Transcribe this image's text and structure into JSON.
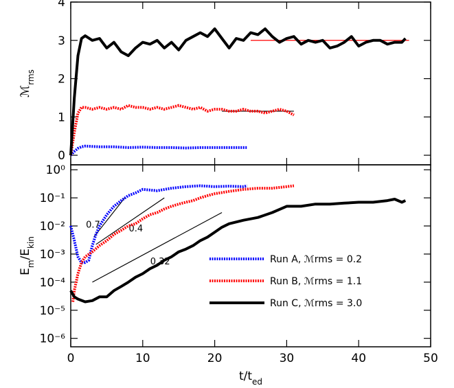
{
  "chart_data": [
    {
      "type": "line",
      "ylabel": [
        "ℳ",
        "rms"
      ],
      "xlim": [
        0,
        50
      ],
      "xticks": [
        0,
        10,
        20,
        30,
        40,
        50
      ],
      "ylim": [
        -0.25,
        4
      ],
      "yticks": [
        0,
        1,
        2,
        3,
        4
      ],
      "series": [
        {
          "color": "#0000ff",
          "style": "dotted",
          "x": [
            0,
            0.5,
            1,
            1.5,
            2,
            4,
            6,
            8,
            10,
            12,
            14,
            16,
            18,
            20,
            22,
            24,
            24.5
          ],
          "values": [
            0,
            0.1,
            0.18,
            0.22,
            0.24,
            0.22,
            0.22,
            0.2,
            0.21,
            0.2,
            0.2,
            0.19,
            0.2,
            0.2,
            0.2,
            0.2,
            0.2
          ]
        },
        {
          "color": "#ff0000",
          "style": "dotted",
          "x": [
            0,
            0.5,
            1,
            1.5,
            2,
            3,
            4,
            5,
            6,
            7,
            8,
            9,
            10,
            11,
            12,
            13,
            14,
            15,
            16,
            17,
            18,
            19,
            20,
            21,
            22,
            23,
            24,
            25,
            26,
            27,
            28,
            29,
            30,
            31
          ],
          "values": [
            0,
            0.6,
            1.1,
            1.25,
            1.25,
            1.2,
            1.25,
            1.2,
            1.25,
            1.2,
            1.3,
            1.25,
            1.25,
            1.2,
            1.25,
            1.2,
            1.25,
            1.3,
            1.25,
            1.2,
            1.25,
            1.15,
            1.2,
            1.2,
            1.15,
            1.15,
            1.2,
            1.15,
            1.15,
            1.1,
            1.15,
            1.2,
            1.15,
            1.05
          ]
        },
        {
          "color": "#000000",
          "style": "solid",
          "x": [
            0,
            0.5,
            1,
            1.5,
            2,
            3,
            4,
            5,
            6,
            7,
            8,
            9,
            10,
            11,
            12,
            13,
            14,
            15,
            16,
            17,
            18,
            19,
            20,
            21,
            22,
            23,
            24,
            25,
            26,
            27,
            28,
            29,
            30,
            31,
            32,
            33,
            34,
            35,
            36,
            37,
            38,
            39,
            40,
            41,
            42,
            43,
            44,
            45,
            46,
            46.5
          ],
          "values": [
            0,
            1.5,
            2.6,
            3.05,
            3.12,
            3.0,
            3.05,
            2.8,
            2.95,
            2.7,
            2.6,
            2.8,
            2.95,
            2.9,
            3.0,
            2.8,
            2.95,
            2.75,
            3.0,
            3.1,
            3.2,
            3.1,
            3.3,
            3.05,
            2.8,
            3.05,
            3.0,
            3.2,
            3.15,
            3.3,
            3.1,
            2.95,
            3.05,
            3.1,
            2.9,
            3.0,
            2.95,
            3.0,
            2.8,
            2.85,
            2.95,
            3.1,
            2.85,
            2.95,
            3.0,
            3.0,
            2.9,
            2.95,
            2.95,
            3.05
          ]
        }
      ],
      "reference_lines": [
        {
          "color": "#ff0000",
          "x": [
            25,
            47
          ],
          "y": [
            3,
            3
          ]
        },
        {
          "color": "#000000",
          "x": [
            21,
            31
          ],
          "y": [
            1.15,
            1.15
          ]
        }
      ]
    },
    {
      "type": "line",
      "yscale": "log",
      "xlabel": [
        "t/t",
        "ed"
      ],
      "ylabel": [
        "E",
        "m",
        "/E",
        "kin"
      ],
      "xlim": [
        0,
        50
      ],
      "xticks": [
        0,
        10,
        20,
        30,
        40,
        50
      ],
      "ylim": [
        5e-07,
        1.5
      ],
      "yticks": [
        {
          "value": 1,
          "label": "10⁰"
        },
        {
          "value": 0.1,
          "label": "10⁻¹"
        },
        {
          "value": 0.01,
          "label": "10⁻²"
        },
        {
          "value": 0.001,
          "label": "10⁻³"
        },
        {
          "value": 0.0001,
          "label": "10⁻⁴"
        },
        {
          "value": 1e-05,
          "label": "10⁻⁵"
        },
        {
          "value": 1e-06,
          "label": "10⁻⁶"
        }
      ],
      "legend": "lower right",
      "series": [
        {
          "name": "Run A, ℳrms = 0.2",
          "color": "#0000ff",
          "style": "dotted",
          "x": [
            0,
            0.5,
            1,
            1.5,
            2,
            2.5,
            3,
            3.5,
            4,
            5,
            6,
            7,
            8,
            9,
            10,
            12,
            14,
            16,
            18,
            20,
            22,
            24,
            24.5
          ],
          "values": [
            0.01,
            0.003,
            0.0008,
            0.0005,
            0.0005,
            0.0006,
            0.002,
            0.005,
            0.01,
            0.025,
            0.05,
            0.08,
            0.12,
            0.15,
            0.2,
            0.18,
            0.22,
            0.25,
            0.27,
            0.25,
            0.26,
            0.25,
            0.27
          ]
        },
        {
          "name": "Run B, ℳrms = 1.1",
          "color": "#ff0000",
          "style": "dotted",
          "x": [
            0.3,
            0.5,
            1,
            1.5,
            2,
            3,
            4,
            5,
            6,
            7,
            8,
            9,
            10,
            11,
            12,
            13,
            14,
            15,
            16,
            17,
            18,
            19,
            20,
            22,
            24,
            26,
            28,
            30,
            31
          ],
          "values": [
            2e-05,
            5e-05,
            0.0002,
            0.0005,
            0.0008,
            0.0012,
            0.002,
            0.003,
            0.005,
            0.007,
            0.01,
            0.012,
            0.018,
            0.025,
            0.03,
            0.04,
            0.05,
            0.06,
            0.07,
            0.08,
            0.1,
            0.12,
            0.14,
            0.17,
            0.2,
            0.22,
            0.22,
            0.25,
            0.27
          ]
        },
        {
          "name": "Run C, ℳrms = 3.0",
          "color": "#000000",
          "style": "solid",
          "x": [
            0,
            0.5,
            1,
            2,
            3,
            4,
            5,
            6,
            7,
            8,
            9,
            10,
            11,
            12,
            13,
            14,
            15,
            16,
            17,
            18,
            19,
            20,
            21,
            22,
            24,
            26,
            28,
            30,
            32,
            34,
            36,
            38,
            40,
            42,
            44,
            45,
            46,
            46.5
          ],
          "values": [
            5e-05,
            3e-05,
            2.5e-05,
            2e-05,
            2.2e-05,
            3e-05,
            3e-05,
            5e-05,
            7e-05,
            0.0001,
            0.00015,
            0.0002,
            0.0003,
            0.0004,
            0.0006,
            0.0008,
            0.0012,
            0.0015,
            0.002,
            0.003,
            0.004,
            0.006,
            0.009,
            0.012,
            0.016,
            0.02,
            0.03,
            0.05,
            0.05,
            0.06,
            0.06,
            0.065,
            0.07,
            0.07,
            0.08,
            0.09,
            0.07,
            0.08
          ]
        }
      ],
      "reference_lines": [
        {
          "label": "0.7",
          "color": "#000000",
          "x": [
            3.2,
            7.5
          ],
          "y": [
            0.004,
            0.1
          ]
        },
        {
          "label": "0.4",
          "color": "#000000",
          "x": [
            3.5,
            13
          ],
          "y": [
            0.0022,
            0.1
          ]
        },
        {
          "label": "0.32",
          "color": "#000000",
          "x": [
            3,
            21
          ],
          "y": [
            0.0001,
            0.03
          ]
        }
      ]
    }
  ]
}
